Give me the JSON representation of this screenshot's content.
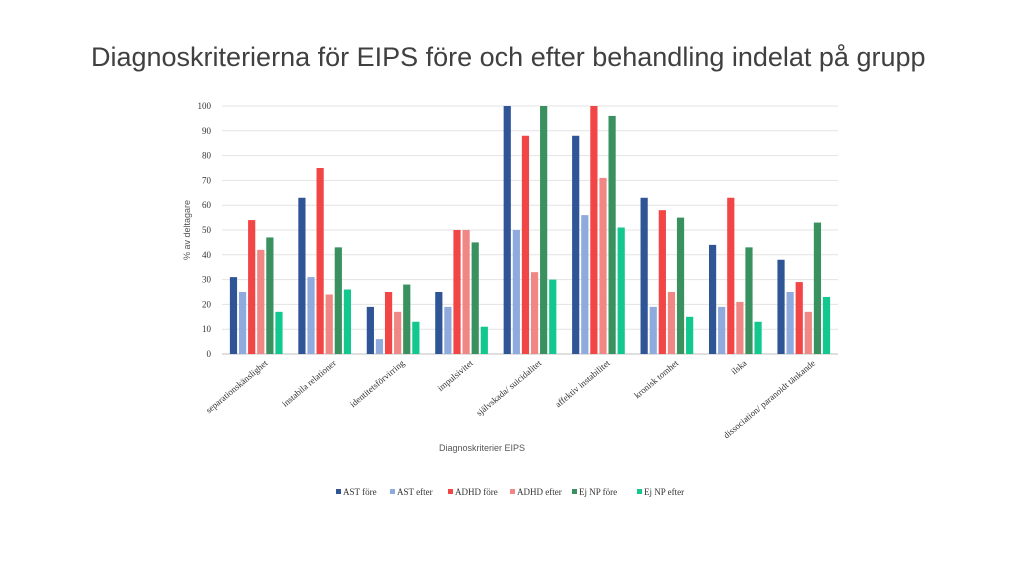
{
  "slide": {
    "title": "Diagnoskriterierna för EIPS före och efter behandling indelat på grupp"
  },
  "chart_data": {
    "type": "bar",
    "title": "",
    "xlabel": "Diagnoskriterier EIPS",
    "ylabel": "% av deltagare",
    "ylim": [
      0,
      100
    ],
    "yticks": [
      0,
      10,
      20,
      30,
      40,
      50,
      60,
      70,
      80,
      90,
      100
    ],
    "grid": true,
    "legend_position": "bottom",
    "categories": [
      "separationskänslighet",
      "instabila relationer",
      "identitetsförvirring",
      "impulsivitet",
      "självskada/ suicidalitet",
      "affektiv instabilitet",
      "kronisk tomhet",
      "ilska",
      "dissociation/ paranoidt tänkande"
    ],
    "series": [
      {
        "name": "AST före",
        "color": "#2f5597",
        "values": [
          31,
          63,
          19,
          25,
          100,
          88,
          63,
          44,
          38
        ]
      },
      {
        "name": "AST efter",
        "color": "#8faadc",
        "values": [
          25,
          31,
          6,
          19,
          50,
          56,
          19,
          19,
          25
        ]
      },
      {
        "name": "ADHD före",
        "color": "#f24646",
        "values": [
          54,
          75,
          25,
          50,
          88,
          100,
          58,
          63,
          29
        ]
      },
      {
        "name": "ADHD efter",
        "color": "#f08784",
        "values": [
          42,
          24,
          17,
          50,
          33,
          71,
          25,
          21,
          17
        ]
      },
      {
        "name": "Ej NP före",
        "color": "#3a9160",
        "values": [
          47,
          43,
          28,
          45,
          100,
          96,
          55,
          43,
          53
        ]
      },
      {
        "name": "Ej NP efter",
        "color": "#12c88e",
        "values": [
          17,
          26,
          13,
          11,
          30,
          51,
          15,
          13,
          23
        ]
      }
    ]
  }
}
